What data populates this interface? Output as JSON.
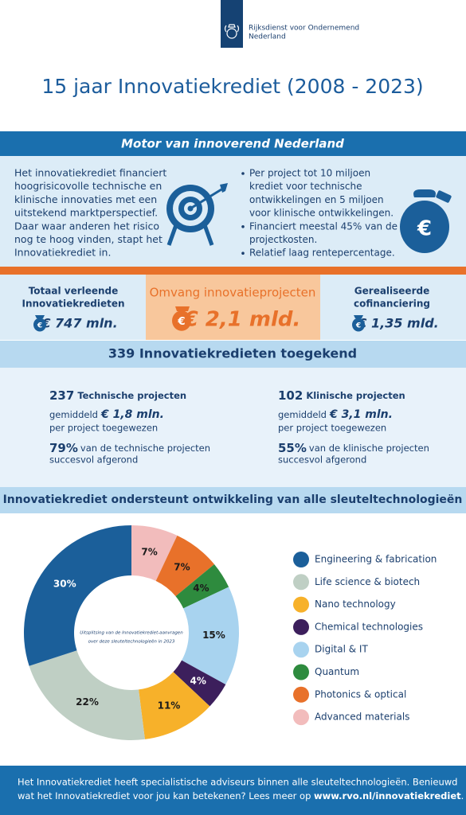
{
  "header": {
    "org": [
      "Rijksdienst voor Ondernemend",
      "Nederland"
    ],
    "title": "15 jaar Innovatiekrediet (2008 - 2023)"
  },
  "motor": {
    "heading": "Motor van innoverend Nederland",
    "text": [
      "Het innovatiekrediet financiert",
      "hoogrisicovolle technische en",
      "klinische innovaties met een",
      "uitstekend marktperspectief.",
      "Daar waar anderen het risico",
      "nog te hoog vinden, stapt het",
      "Innovatiekrediet in."
    ],
    "bullets": [
      [
        "Per project tot 10 miljoen",
        "krediet voor technische",
        "ontwikkelingen en 5 miljoen",
        "voor klinische ontwikkelingen."
      ],
      [
        "Financiert meestal 45% van de",
        "projectkosten."
      ],
      [
        "Relatief laag rentepercentage."
      ]
    ]
  },
  "stats": [
    {
      "label": [
        "Totaal verleende",
        "Innovatiekredieten"
      ],
      "value": "€ 747 mln."
    },
    {
      "label": [
        "Omvang innovatieprojecten"
      ],
      "value": "€ 2,1 mld."
    },
    {
      "label": [
        "Gerealiseerde",
        "cofinanciering"
      ],
      "value": "€ 1,35 mld."
    }
  ],
  "awarded": {
    "heading": "339 Innovatiekredieten toegekend",
    "columns": [
      {
        "count": "237",
        "count_label": "Technische projecten",
        "avg_prefix": "gemiddeld",
        "avg": "€ 1,8 mln.",
        "avg_suffix": "per project toegewezen",
        "rate": "79%",
        "rate_label": [
          "van de technische projecten",
          "succesvol afgerond"
        ]
      },
      {
        "count": "102",
        "count_label": "Klinische projecten",
        "avg_prefix": "gemiddeld",
        "avg": "€ 3,1 mln.",
        "avg_suffix": "per project toegewezen",
        "rate": "55%",
        "rate_label": [
          "van de klinische projecten",
          "succesvol afgerond"
        ]
      }
    ]
  },
  "technologies": {
    "heading": "Innovatiekrediet ondersteunt ontwikkeling van alle sleuteltechnologieën"
  },
  "chart_data": {
    "type": "donut",
    "center_text": [
      "Uitsplitsing van de Innovatiekrediet-aanvragen",
      "over deze sleuteltechnologieën in 2023"
    ],
    "categories": [
      "Engineering & fabrication",
      "Life science & biotech",
      "Nano technology",
      "Chemical technologies",
      "Digital & IT",
      "Quantum",
      "Photonics & optical",
      "Advanced materials"
    ],
    "values": [
      30,
      22,
      11,
      4,
      15,
      4,
      7,
      7
    ],
    "value_labels": [
      "30%",
      "22%",
      "11%",
      "4%",
      "15%",
      "4%",
      "7%",
      "7%"
    ],
    "colors": [
      "#1b5f9a",
      "#bfcfc4",
      "#f7b12a",
      "#3c1f5c",
      "#a8d3ef",
      "#2e8b3e",
      "#e8712a",
      "#f2bcbc"
    ]
  },
  "footer": {
    "line1": "Het Innovatiekrediet heeft specialistische adviseurs binnen alle sleuteltechnologieën. Benieuwd",
    "line2": "wat het Innovatiekrediet voor jou kan betekenen? Lees meer op ",
    "link": "www.rvo.nl/innovatiekrediet",
    "end": "."
  }
}
